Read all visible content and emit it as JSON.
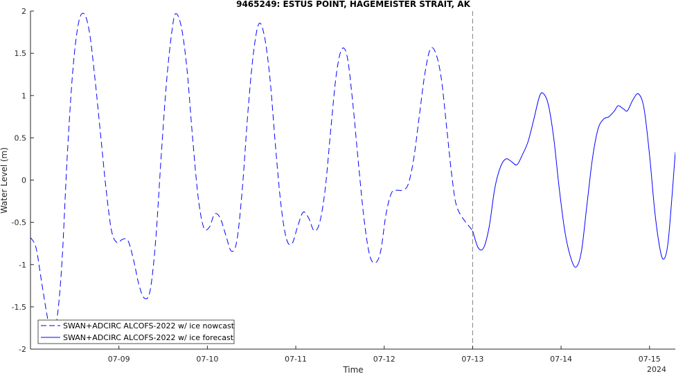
{
  "chart_data": {
    "type": "line",
    "title": "9465249: ESTUS POINT, HAGEMEISTER STRAIT, AK",
    "xlabel": "Time",
    "ylabel": "Water Level (m)",
    "x_tick_labels": [
      "07-09",
      "07-10",
      "07-11",
      "07-12",
      "07-13",
      "07-14",
      "07-15"
    ],
    "x_tick_values": [
      "2024-07-09 00:00",
      "2024-07-10 00:00",
      "2024-07-11 00:00",
      "2024-07-12 00:00",
      "2024-07-13 00:00",
      "2024-07-14 00:00",
      "2024-07-15 00:00"
    ],
    "x_secondary_label": "2024",
    "xlim": [
      "2024-07-08 00:00",
      "2024-07-15 07:00"
    ],
    "ylim": [
      -2,
      2
    ],
    "y_ticks": [
      -2,
      -1.5,
      -1,
      -0.5,
      0,
      0.5,
      1,
      1.5,
      2
    ],
    "y_tick_labels": [
      "-2",
      "-1.5",
      "-1",
      "-0.5",
      "0",
      "0.5",
      "1",
      "1.5",
      "2"
    ],
    "grid": false,
    "legend_position": "bottom-left",
    "vline_at": "2024-07-13 00:00",
    "colors": {
      "series": "#0000ff",
      "vline": "#808080",
      "axes": "#262626"
    },
    "series": [
      {
        "name": "SWAN+ADCIRC ALCOFS-2022 w/ ice nowcast",
        "style": "dashed",
        "points": [
          [
            "2024-07-08 00:00",
            -0.68
          ],
          [
            "2024-07-08 01:30",
            -0.8
          ],
          [
            "2024-07-08 03:00",
            -1.2
          ],
          [
            "2024-07-08 04:30",
            -1.6
          ],
          [
            "2024-07-08 05:30",
            -1.78
          ],
          [
            "2024-07-08 07:00",
            -1.7
          ],
          [
            "2024-07-08 08:30",
            -1.0
          ],
          [
            "2024-07-08 10:00",
            0.3
          ],
          [
            "2024-07-08 11:30",
            1.3
          ],
          [
            "2024-07-08 13:00",
            1.85
          ],
          [
            "2024-07-08 14:30",
            1.97
          ],
          [
            "2024-07-08 16:00",
            1.75
          ],
          [
            "2024-07-08 17:30",
            1.2
          ],
          [
            "2024-07-08 19:00",
            0.55
          ],
          [
            "2024-07-08 20:30",
            -0.1
          ],
          [
            "2024-07-08 22:00",
            -0.6
          ],
          [
            "2024-07-08 23:30",
            -0.74
          ],
          [
            "2024-07-09 01:00",
            -0.7
          ],
          [
            "2024-07-09 02:30",
            -0.72
          ],
          [
            "2024-07-09 04:00",
            -0.95
          ],
          [
            "2024-07-09 05:30",
            -1.25
          ],
          [
            "2024-07-09 07:00",
            -1.4
          ],
          [
            "2024-07-09 08:30",
            -1.3
          ],
          [
            "2024-07-09 10:00",
            -0.7
          ],
          [
            "2024-07-09 11:30",
            0.3
          ],
          [
            "2024-07-09 13:00",
            1.2
          ],
          [
            "2024-07-09 14:30",
            1.8
          ],
          [
            "2024-07-09 15:30",
            1.97
          ],
          [
            "2024-07-09 17:00",
            1.8
          ],
          [
            "2024-07-09 18:30",
            1.3
          ],
          [
            "2024-07-09 20:00",
            0.5
          ],
          [
            "2024-07-09 21:30",
            -0.2
          ],
          [
            "2024-07-09 23:00",
            -0.56
          ],
          [
            "2024-07-10 00:30",
            -0.56
          ],
          [
            "2024-07-10 02:00",
            -0.4
          ],
          [
            "2024-07-10 03:30",
            -0.45
          ],
          [
            "2024-07-10 05:00",
            -0.65
          ],
          [
            "2024-07-10 06:30",
            -0.84
          ],
          [
            "2024-07-10 08:00",
            -0.72
          ],
          [
            "2024-07-10 09:30",
            -0.1
          ],
          [
            "2024-07-10 11:00",
            0.8
          ],
          [
            "2024-07-10 12:30",
            1.5
          ],
          [
            "2024-07-10 14:00",
            1.85
          ],
          [
            "2024-07-10 15:30",
            1.7
          ],
          [
            "2024-07-10 17:00",
            1.2
          ],
          [
            "2024-07-10 18:30",
            0.4
          ],
          [
            "2024-07-10 20:00",
            -0.3
          ],
          [
            "2024-07-10 21:30",
            -0.7
          ],
          [
            "2024-07-10 23:00",
            -0.75
          ],
          [
            "2024-07-11 00:30",
            -0.55
          ],
          [
            "2024-07-11 02:00",
            -0.38
          ],
          [
            "2024-07-11 03:30",
            -0.45
          ],
          [
            "2024-07-11 05:00",
            -0.6
          ],
          [
            "2024-07-11 06:30",
            -0.5
          ],
          [
            "2024-07-11 08:00",
            -0.1
          ],
          [
            "2024-07-11 09:30",
            0.6
          ],
          [
            "2024-07-11 11:00",
            1.25
          ],
          [
            "2024-07-11 12:30",
            1.55
          ],
          [
            "2024-07-11 14:00",
            1.45
          ],
          [
            "2024-07-11 15:30",
            0.9
          ],
          [
            "2024-07-11 17:00",
            0.2
          ],
          [
            "2024-07-11 18:30",
            -0.45
          ],
          [
            "2024-07-11 20:00",
            -0.88
          ],
          [
            "2024-07-11 21:30",
            -0.98
          ],
          [
            "2024-07-11 23:00",
            -0.85
          ],
          [
            "2024-07-12 00:30",
            -0.4
          ],
          [
            "2024-07-12 02:00",
            -0.15
          ],
          [
            "2024-07-12 03:30",
            -0.12
          ],
          [
            "2024-07-12 05:00",
            -0.12
          ],
          [
            "2024-07-12 06:30",
            -0.05
          ],
          [
            "2024-07-12 08:00",
            0.25
          ],
          [
            "2024-07-12 09:30",
            0.75
          ],
          [
            "2024-07-12 11:00",
            1.25
          ],
          [
            "2024-07-12 12:30",
            1.55
          ],
          [
            "2024-07-12 14:00",
            1.5
          ],
          [
            "2024-07-12 15:30",
            1.2
          ],
          [
            "2024-07-12 17:00",
            0.6
          ],
          [
            "2024-07-12 18:30",
            0.0
          ],
          [
            "2024-07-12 20:00",
            -0.35
          ],
          [
            "2024-07-13 00:00",
            -0.6
          ]
        ]
      },
      {
        "name": "SWAN+ADCIRC ALCOFS-2022 w/ ice forecast",
        "style": "solid",
        "points": [
          [
            "2024-07-13 00:00",
            -0.6
          ],
          [
            "2024-07-13 01:30",
            -0.8
          ],
          [
            "2024-07-13 03:00",
            -0.8
          ],
          [
            "2024-07-13 04:30",
            -0.55
          ],
          [
            "2024-07-13 06:00",
            -0.1
          ],
          [
            "2024-07-13 07:30",
            0.15
          ],
          [
            "2024-07-13 09:00",
            0.25
          ],
          [
            "2024-07-13 10:30",
            0.22
          ],
          [
            "2024-07-13 12:00",
            0.18
          ],
          [
            "2024-07-13 13:30",
            0.3
          ],
          [
            "2024-07-13 15:00",
            0.45
          ],
          [
            "2024-07-13 16:30",
            0.7
          ],
          [
            "2024-07-13 18:00",
            0.97
          ],
          [
            "2024-07-13 19:00",
            1.03
          ],
          [
            "2024-07-13 20:30",
            0.9
          ],
          [
            "2024-07-13 22:00",
            0.5
          ],
          [
            "2024-07-13 23:30",
            -0.1
          ],
          [
            "2024-07-14 01:00",
            -0.6
          ],
          [
            "2024-07-14 02:30",
            -0.9
          ],
          [
            "2024-07-14 04:00",
            -1.03
          ],
          [
            "2024-07-14 05:30",
            -0.85
          ],
          [
            "2024-07-14 07:00",
            -0.3
          ],
          [
            "2024-07-14 08:30",
            0.25
          ],
          [
            "2024-07-14 10:00",
            0.6
          ],
          [
            "2024-07-14 11:30",
            0.72
          ],
          [
            "2024-07-14 13:00",
            0.75
          ],
          [
            "2024-07-14 14:30",
            0.82
          ],
          [
            "2024-07-14 15:30",
            0.88
          ],
          [
            "2024-07-14 17:00",
            0.84
          ],
          [
            "2024-07-14 18:00",
            0.82
          ],
          [
            "2024-07-14 19:30",
            0.95
          ],
          [
            "2024-07-14 21:00",
            1.02
          ],
          [
            "2024-07-14 22:30",
            0.85
          ],
          [
            "2024-07-15 00:00",
            0.3
          ],
          [
            "2024-07-15 01:30",
            -0.4
          ],
          [
            "2024-07-15 03:00",
            -0.85
          ],
          [
            "2024-07-15 04:00",
            -0.93
          ],
          [
            "2024-07-15 05:00",
            -0.75
          ],
          [
            "2024-07-15 06:00",
            -0.25
          ],
          [
            "2024-07-15 07:00",
            0.33
          ]
        ]
      }
    ]
  }
}
